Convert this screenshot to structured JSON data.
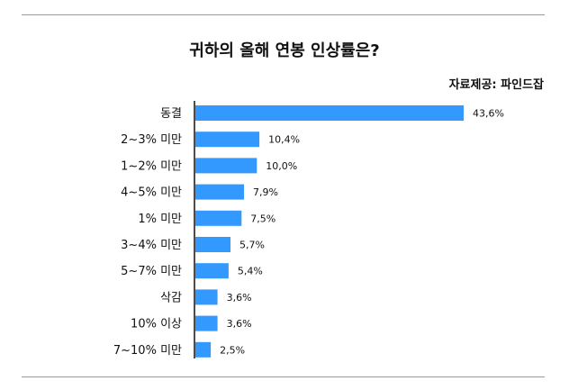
{
  "chart_data": {
    "type": "bar",
    "orientation": "horizontal",
    "title": "귀하의 올해 연봉 인상률은?",
    "source": "자료제공: 파인드잡",
    "categories": [
      "동결",
      "2~3% 미만",
      "1~2% 미만",
      "4~5% 미만",
      "1% 미만",
      "3~4% 미만",
      "5~7% 미만",
      "삭감",
      "10% 이상",
      "7~10% 미만"
    ],
    "values": [
      43.6,
      10.4,
      10.0,
      7.9,
      7.5,
      5.7,
      5.4,
      3.6,
      3.6,
      2.5
    ],
    "value_labels": [
      "43,6%",
      "10,4%",
      "10,0%",
      "7,9%",
      "7,5%",
      "5,7%",
      "5,4%",
      "3,6%",
      "3,6%",
      "2,5%"
    ],
    "xlabel": "",
    "ylabel": "",
    "xlim": [
      0,
      43.6
    ],
    "bar_color": "#3399ff",
    "grid": false,
    "legend": "none"
  }
}
